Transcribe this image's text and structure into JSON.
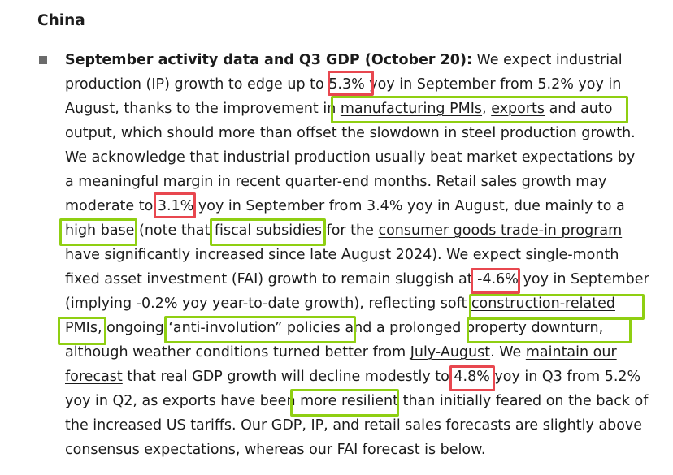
{
  "heading": "China",
  "paragraph": {
    "l1": {
      "lead": "September activity data and Q3 GDP (October 20):",
      "t": " We expect industrial"
    },
    "l2": {
      "a": "production (IP) growth to edge up to ",
      "v": "5.3%",
      "b": " yoy in September from 5.2% yoy in"
    },
    "l3": {
      "a": "August, thanks to the improvement in ",
      "k1": "manufacturing PMIs",
      "s": ", ",
      "k2": "exports",
      "b": " and auto"
    },
    "l4": {
      "a": "output, which should more than offset the slowdown in ",
      "k": "steel production",
      "b": " growth."
    },
    "l5": "We acknowledge that industrial production usually beat market expectations by",
    "l6": "a meaningful margin in recent quarter-end months. Retail sales growth may",
    "l7": {
      "a": "moderate to ",
      "v": "3.1%",
      "b": " yoy in September from 3.4% yoy in August, due mainly to a"
    },
    "l8": {
      "k1": "high base",
      "a": " (note that ",
      "k2": "fiscal subsidies",
      "b": " for the ",
      "k3": "consumer goods trade-in program"
    },
    "l9": "have significantly increased since late August 2024). We expect single-month",
    "l10": {
      "a": "fixed asset investment (FAI) growth to remain sluggish at ",
      "v": "-4.6%",
      "b": " yoy in September"
    },
    "l11": {
      "a": "(implying -0.2% yoy year-to-date growth), reflecting soft ",
      "k": "construction-related"
    },
    "l12": {
      "k1": "PMIs",
      "a": ", ongoing ",
      "k2": "‘anti-involution” policies",
      "b": " and a prolonged ",
      "k3": "property downturn",
      "c": ","
    },
    "l13": {
      "a": "although weather conditions turned better from ",
      "k1": "July-August",
      "b": ". We ",
      "k2": "maintain our"
    },
    "l14": {
      "k": "forecast",
      "a": " that real GDP growth will decline modestly to ",
      "v": "4.8%",
      "b": " yoy in Q3 from 5.2%"
    },
    "l15": {
      "a": "yoy in Q2, as exports have been ",
      "k": "more resilient",
      "b": " than initially feared on the back of"
    },
    "l16": "the increased US tariffs. Our GDP, IP, and retail sales forecasts are slightly above",
    "l17": "consensus expectations, whereas our FAI forecast is below."
  },
  "colors": {
    "red_box": "#e8474f",
    "green_box": "#8fcf12",
    "bullet": "#6b6b6b",
    "text": "#1c1c1c"
  }
}
